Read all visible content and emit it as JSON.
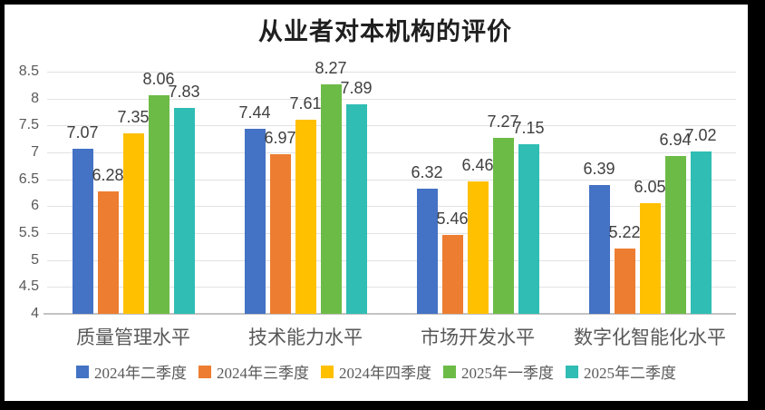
{
  "chart_data": {
    "type": "bar",
    "title": "从业者对本机构的评价",
    "categories": [
      "质量管理水平",
      "技术能力水平",
      "市场开发水平",
      "数字化智能化水平"
    ],
    "series": [
      {
        "name": "2024年二季度",
        "color": "#4472C4",
        "values": [
          7.07,
          7.44,
          6.32,
          6.39
        ]
      },
      {
        "name": "2024年三季度",
        "color": "#ED7D31",
        "values": [
          6.28,
          6.97,
          5.46,
          5.22
        ]
      },
      {
        "name": "2024年四季度",
        "color": "#FFC000",
        "values": [
          7.35,
          7.61,
          6.46,
          6.05
        ]
      },
      {
        "name": "2025年一季度",
        "color": "#6CBB46",
        "values": [
          8.06,
          8.27,
          7.27,
          6.94
        ]
      },
      {
        "name": "2025年二季度",
        "color": "#2FBDB4",
        "values": [
          7.83,
          7.89,
          7.15,
          7.02
        ]
      }
    ],
    "ylim": [
      4,
      8.5
    ],
    "ytick_step": 0.5,
    "yticks": [
      "8.5",
      "8",
      "7.5",
      "7",
      "6.5",
      "6",
      "5.5",
      "5",
      "4.5",
      "4"
    ],
    "grid": true,
    "data_labels": true,
    "legend_position": "bottom",
    "colors": {
      "background": "#FFFFFF",
      "frame_border": "#000000",
      "gridline": "#E2E2E2",
      "axis_line": "#C3C3C3",
      "tick_text": "#595959",
      "data_label_text": "#3F3F3F",
      "title_text": "#1F1F1F"
    }
  }
}
